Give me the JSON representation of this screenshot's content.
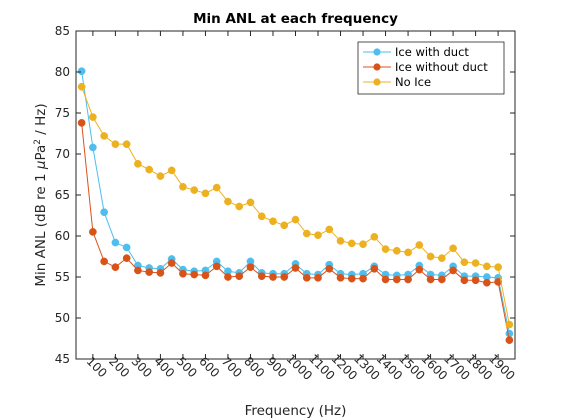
{
  "chart_data": {
    "type": "line",
    "title": "Min ANL at each frequency",
    "xlabel": "Frequency (Hz)",
    "ylabel_parts": [
      "Min ANL (dB re 1 ",
      "μ",
      "Pa",
      "2",
      " / Hz)"
    ],
    "xlim": [
      25,
      1975
    ],
    "ylim": [
      45,
      85
    ],
    "xticks": [
      100,
      200,
      300,
      400,
      500,
      600,
      700,
      800,
      900,
      1000,
      1100,
      1200,
      1300,
      1400,
      1500,
      1600,
      1700,
      1800,
      1900
    ],
    "yticks": [
      45,
      50,
      55,
      60,
      65,
      70,
      75,
      80,
      85
    ],
    "legend_position": "top-right",
    "x": [
      50,
      100,
      150,
      200,
      250,
      300,
      350,
      400,
      450,
      500,
      550,
      600,
      650,
      700,
      750,
      800,
      850,
      900,
      950,
      1000,
      1050,
      1100,
      1150,
      1200,
      1250,
      1300,
      1350,
      1400,
      1450,
      1500,
      1550,
      1600,
      1650,
      1700,
      1750,
      1800,
      1850,
      1900,
      1950
    ],
    "series": [
      {
        "name": "Ice with duct",
        "color": "#4DBEEE",
        "values": [
          80.1,
          70.8,
          62.9,
          59.2,
          58.6,
          56.4,
          56.1,
          56.0,
          57.2,
          55.9,
          55.7,
          55.8,
          56.9,
          55.7,
          55.5,
          56.9,
          55.5,
          55.4,
          55.4,
          56.6,
          55.4,
          55.3,
          56.5,
          55.4,
          55.3,
          55.4,
          56.3,
          55.3,
          55.2,
          55.3,
          56.4,
          55.3,
          55.2,
          56.3,
          55.1,
          55.1,
          55.0,
          54.9,
          48.1
        ]
      },
      {
        "name": "Ice without duct",
        "color": "#D95319",
        "values": [
          73.8,
          60.5,
          56.9,
          56.2,
          57.3,
          55.8,
          55.6,
          55.5,
          56.7,
          55.4,
          55.3,
          55.2,
          56.3,
          55.0,
          55.1,
          56.2,
          55.1,
          55.0,
          55.0,
          56.1,
          54.9,
          54.9,
          56.0,
          54.9,
          54.8,
          54.8,
          56.0,
          54.7,
          54.7,
          54.7,
          55.9,
          54.7,
          54.7,
          55.8,
          54.6,
          54.6,
          54.3,
          54.4,
          47.3
        ]
      },
      {
        "name": "No Ice",
        "color": "#EDB120",
        "values": [
          78.2,
          74.5,
          72.2,
          71.2,
          71.2,
          68.8,
          68.1,
          67.3,
          68.0,
          66.0,
          65.6,
          65.2,
          65.9,
          64.2,
          63.6,
          64.1,
          62.4,
          61.8,
          61.3,
          62.0,
          60.3,
          60.1,
          60.8,
          59.4,
          59.1,
          59.0,
          59.9,
          58.4,
          58.2,
          58.0,
          58.9,
          57.5,
          57.3,
          58.5,
          56.8,
          56.7,
          56.3,
          56.2,
          49.2
        ]
      }
    ]
  }
}
